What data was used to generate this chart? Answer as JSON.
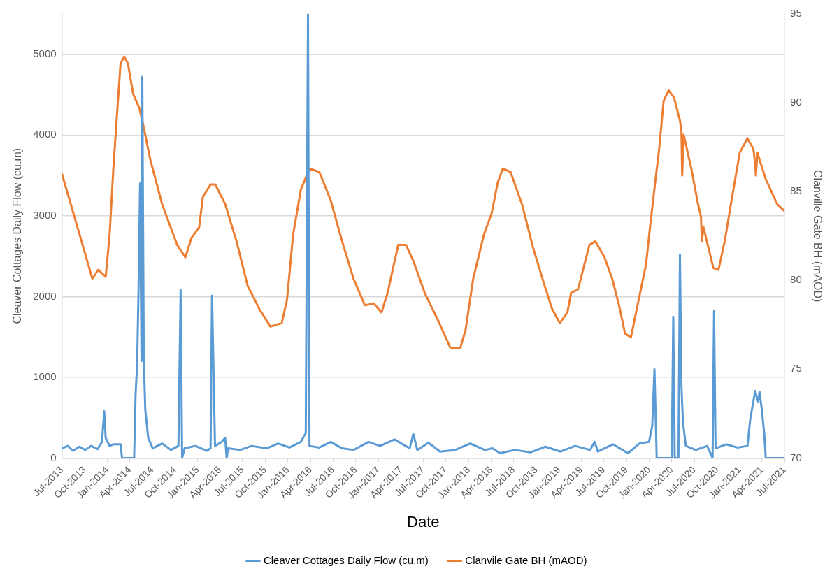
{
  "chart_data": {
    "type": "line",
    "xlabel": "Date",
    "ylabel": "Cleaver Cottages Daily Flow (cu.m)",
    "y2label": "Clanville Gate BH (mAOD)",
    "xlim": [
      "2013-07-01",
      "2021-07-01"
    ],
    "xticks": [
      {
        "value": "2013-07-01",
        "label": "Jul-2013"
      },
      {
        "value": "2013-10-01",
        "label": "Oct-2013"
      },
      {
        "value": "2014-01-01",
        "label": "Jan-2014"
      },
      {
        "value": "2014-04-01",
        "label": "Apr-2014"
      },
      {
        "value": "2014-07-01",
        "label": "Jul-2014"
      },
      {
        "value": "2014-10-01",
        "label": "Oct-2014"
      },
      {
        "value": "2015-01-01",
        "label": "Jan-2015"
      },
      {
        "value": "2015-04-01",
        "label": "Apr-2015"
      },
      {
        "value": "2015-07-01",
        "label": "Jul-2015"
      },
      {
        "value": "2015-10-01",
        "label": "Oct-2015"
      },
      {
        "value": "2016-01-01",
        "label": "Jan-2016"
      },
      {
        "value": "2016-04-01",
        "label": "Apr-2016"
      },
      {
        "value": "2016-07-01",
        "label": "Jul-2016"
      },
      {
        "value": "2016-10-01",
        "label": "Oct-2016"
      },
      {
        "value": "2017-01-01",
        "label": "Jan-2017"
      },
      {
        "value": "2017-04-01",
        "label": "Apr-2017"
      },
      {
        "value": "2017-07-01",
        "label": "Jul-2017"
      },
      {
        "value": "2017-10-01",
        "label": "Oct-2017"
      },
      {
        "value": "2018-01-01",
        "label": "Jan-2018"
      },
      {
        "value": "2018-04-01",
        "label": "Apr-2018"
      },
      {
        "value": "2018-07-01",
        "label": "Jul-2018"
      },
      {
        "value": "2018-10-01",
        "label": "Oct-2018"
      },
      {
        "value": "2019-01-01",
        "label": "Jan-2019"
      },
      {
        "value": "2019-04-01",
        "label": "Apr-2019"
      },
      {
        "value": "2019-07-01",
        "label": "Jul-2019"
      },
      {
        "value": "2019-10-01",
        "label": "Oct-2019"
      },
      {
        "value": "2020-01-01",
        "label": "Jan-2020"
      },
      {
        "value": "2020-04-01",
        "label": "Apr-2020"
      },
      {
        "value": "2020-07-01",
        "label": "Jul-2020"
      },
      {
        "value": "2020-10-01",
        "label": "Oct-2020"
      },
      {
        "value": "2021-01-01",
        "label": "Jan-2021"
      },
      {
        "value": "2021-04-01",
        "label": "Apr-2021"
      },
      {
        "value": "2021-07-01",
        "label": "Jul-2021"
      }
    ],
    "ylim": [
      0,
      5500
    ],
    "yticks": [
      0,
      1000,
      2000,
      3000,
      4000,
      5000
    ],
    "y2lim": [
      70,
      95
    ],
    "y2ticks": [
      70,
      75,
      80,
      85,
      90,
      95
    ],
    "grid": "y",
    "legend": "bottom",
    "marker": "none",
    "line_style": "solid",
    "series": [
      {
        "name": "Cleaver Cottages Daily Flow (cu.m)",
        "color": "#5b9bd5",
        "x": [
          "2013-07-01",
          "2013-07-25",
          "2013-08-15",
          "2013-09-10",
          "2013-10-03",
          "2013-10-28",
          "2013-11-22",
          "2013-12-10",
          "2013-12-19",
          "2013-12-25",
          "2014-01-10",
          "2014-01-25",
          "2014-02-23",
          "2014-03-01",
          "2014-04-19",
          "2014-04-25",
          "2014-05-01",
          "2014-05-07",
          "2014-05-13",
          "2014-05-19",
          "2014-05-22",
          "2014-05-28",
          "2014-06-03",
          "2014-06-15",
          "2014-07-03",
          "2014-08-10",
          "2014-09-15",
          "2014-10-15",
          "2014-10-24",
          "2014-10-30",
          "2014-11-09",
          "2014-12-23",
          "2015-02-07",
          "2015-02-22",
          "2015-02-28",
          "2015-03-06",
          "2015-03-12",
          "2015-04-08",
          "2015-04-22",
          "2015-04-28",
          "2015-05-04",
          "2015-06-22",
          "2015-08-07",
          "2015-10-07",
          "2015-11-22",
          "2016-01-07",
          "2016-02-22",
          "2016-03-13",
          "2016-03-22",
          "2016-03-28",
          "2016-05-07",
          "2016-06-22",
          "2016-08-07",
          "2016-09-22",
          "2016-11-22",
          "2017-01-07",
          "2017-03-07",
          "2017-05-07",
          "2017-05-22",
          "2017-06-07",
          "2017-07-22",
          "2017-09-07",
          "2017-11-07",
          "2018-01-07",
          "2018-03-07",
          "2018-04-07",
          "2018-05-07",
          "2018-07-07",
          "2018-09-07",
          "2018-11-07",
          "2019-01-07",
          "2019-03-07",
          "2019-05-07",
          "2019-05-25",
          "2019-06-07",
          "2019-08-07",
          "2019-10-07",
          "2019-11-22",
          "2019-12-31",
          "2020-01-13",
          "2020-01-22",
          "2020-01-31",
          "2020-04-01",
          "2020-04-07",
          "2020-04-13",
          "2020-04-28",
          "2020-05-04",
          "2020-05-10",
          "2020-05-16",
          "2020-05-28",
          "2020-07-07",
          "2020-08-22",
          "2020-09-13",
          "2020-09-19",
          "2020-09-25",
          "2020-11-07",
          "2020-12-22",
          "2021-02-01",
          "2021-02-13",
          "2021-02-25",
          "2021-03-04",
          "2021-03-16",
          "2021-03-22",
          "2021-03-31",
          "2021-04-10",
          "2021-04-16",
          "2021-07-01"
        ],
        "values": [
          120,
          150,
          90,
          140,
          100,
          150,
          110,
          200,
          580,
          250,
          150,
          170,
          170,
          0,
          0,
          800,
          1150,
          2100,
          3400,
          1200,
          4720,
          1250,
          600,
          250,
          120,
          180,
          100,
          150,
          2080,
          0,
          120,
          150,
          90,
          120,
          2010,
          1080,
          150,
          200,
          250,
          0,
          120,
          100,
          150,
          120,
          180,
          130,
          200,
          310,
          5500,
          150,
          130,
          200,
          120,
          100,
          200,
          150,
          230,
          120,
          300,
          100,
          190,
          80,
          100,
          180,
          100,
          120,
          60,
          100,
          70,
          140,
          80,
          150,
          100,
          200,
          80,
          170,
          60,
          180,
          200,
          400,
          1100,
          0,
          0,
          1750,
          0,
          0,
          2520,
          900,
          450,
          150,
          100,
          150,
          0,
          1820,
          120,
          170,
          130,
          150,
          500,
          700,
          830,
          700,
          820,
          600,
          300,
          0,
          0
        ]
      },
      {
        "name": "Clanvile Gate BH (mAOD)",
        "color": "#ed7d31",
        "axis": "y2",
        "x": [
          "2013-07-01",
          "2013-09-10",
          "2013-11-01",
          "2013-11-25",
          "2013-12-25",
          "2014-01-10",
          "2014-01-25",
          "2014-02-08",
          "2014-02-23",
          "2014-03-10",
          "2014-03-25",
          "2014-04-15",
          "2014-05-10",
          "2014-05-25",
          "2014-06-25",
          "2014-08-10",
          "2014-10-10",
          "2014-11-12",
          "2014-12-07",
          "2015-01-07",
          "2015-01-22",
          "2015-02-22",
          "2015-03-13",
          "2015-04-22",
          "2015-06-07",
          "2015-07-22",
          "2015-09-07",
          "2015-10-22",
          "2015-12-07",
          "2015-12-28",
          "2016-01-22",
          "2016-02-22",
          "2016-03-28",
          "2016-05-07",
          "2016-06-22",
          "2016-08-07",
          "2016-09-22",
          "2016-11-07",
          "2016-12-13",
          "2017-01-13",
          "2017-02-07",
          "2017-03-01",
          "2017-03-22",
          "2017-04-22",
          "2017-05-22",
          "2017-07-07",
          "2017-09-04",
          "2017-10-19",
          "2017-11-28",
          "2017-12-19",
          "2018-01-19",
          "2018-03-04",
          "2018-04-04",
          "2018-04-28",
          "2018-05-19",
          "2018-06-19",
          "2018-08-04",
          "2018-09-19",
          "2018-11-04",
          "2018-12-04",
          "2019-01-04",
          "2019-02-04",
          "2019-02-19",
          "2019-03-19",
          "2019-04-10",
          "2019-05-04",
          "2019-05-28",
          "2019-07-04",
          "2019-08-04",
          "2019-09-04",
          "2019-09-25",
          "2019-10-19",
          "2019-11-19",
          "2019-12-19",
          "2020-01-04",
          "2020-01-28",
          "2020-02-10",
          "2020-02-28",
          "2020-03-19",
          "2020-04-10",
          "2020-05-04",
          "2020-05-10",
          "2020-05-13",
          "2020-05-19",
          "2020-06-19",
          "2020-07-16",
          "2020-07-28",
          "2020-08-01",
          "2020-08-07",
          "2020-09-16",
          "2020-10-07",
          "2020-11-01",
          "2020-12-01",
          "2021-01-01",
          "2021-02-01",
          "2021-02-25",
          "2021-03-04",
          "2021-03-07",
          "2021-03-13",
          "2021-04-16",
          "2021-06-01",
          "2021-07-01"
        ],
        "values": [
          86.0,
          82.6,
          80.1,
          80.6,
          80.2,
          82.6,
          86.3,
          89.2,
          92.2,
          92.6,
          92.2,
          90.5,
          89.7,
          88.8,
          86.7,
          84.3,
          82.0,
          81.3,
          82.4,
          83.0,
          84.7,
          85.4,
          85.4,
          84.3,
          82.2,
          79.7,
          78.4,
          77.4,
          77.6,
          78.9,
          82.6,
          85.1,
          86.3,
          86.1,
          84.5,
          82.2,
          80.1,
          78.6,
          78.7,
          78.2,
          79.3,
          80.7,
          82.0,
          82.0,
          81.1,
          79.3,
          77.6,
          76.2,
          76.2,
          77.2,
          80.1,
          82.6,
          83.8,
          85.5,
          86.3,
          86.1,
          84.3,
          81.8,
          79.7,
          78.4,
          77.6,
          78.2,
          79.3,
          79.5,
          80.7,
          82.0,
          82.2,
          81.3,
          80.1,
          78.4,
          77.0,
          76.8,
          78.9,
          80.9,
          83.0,
          85.9,
          87.4,
          90.1,
          90.7,
          90.3,
          89.0,
          88.4,
          85.9,
          88.2,
          86.3,
          84.3,
          83.6,
          82.2,
          83.0,
          80.7,
          80.6,
          82.2,
          84.7,
          87.2,
          88.0,
          87.4,
          86.6,
          85.9,
          87.2,
          85.7,
          84.3,
          83.9
        ]
      }
    ]
  }
}
